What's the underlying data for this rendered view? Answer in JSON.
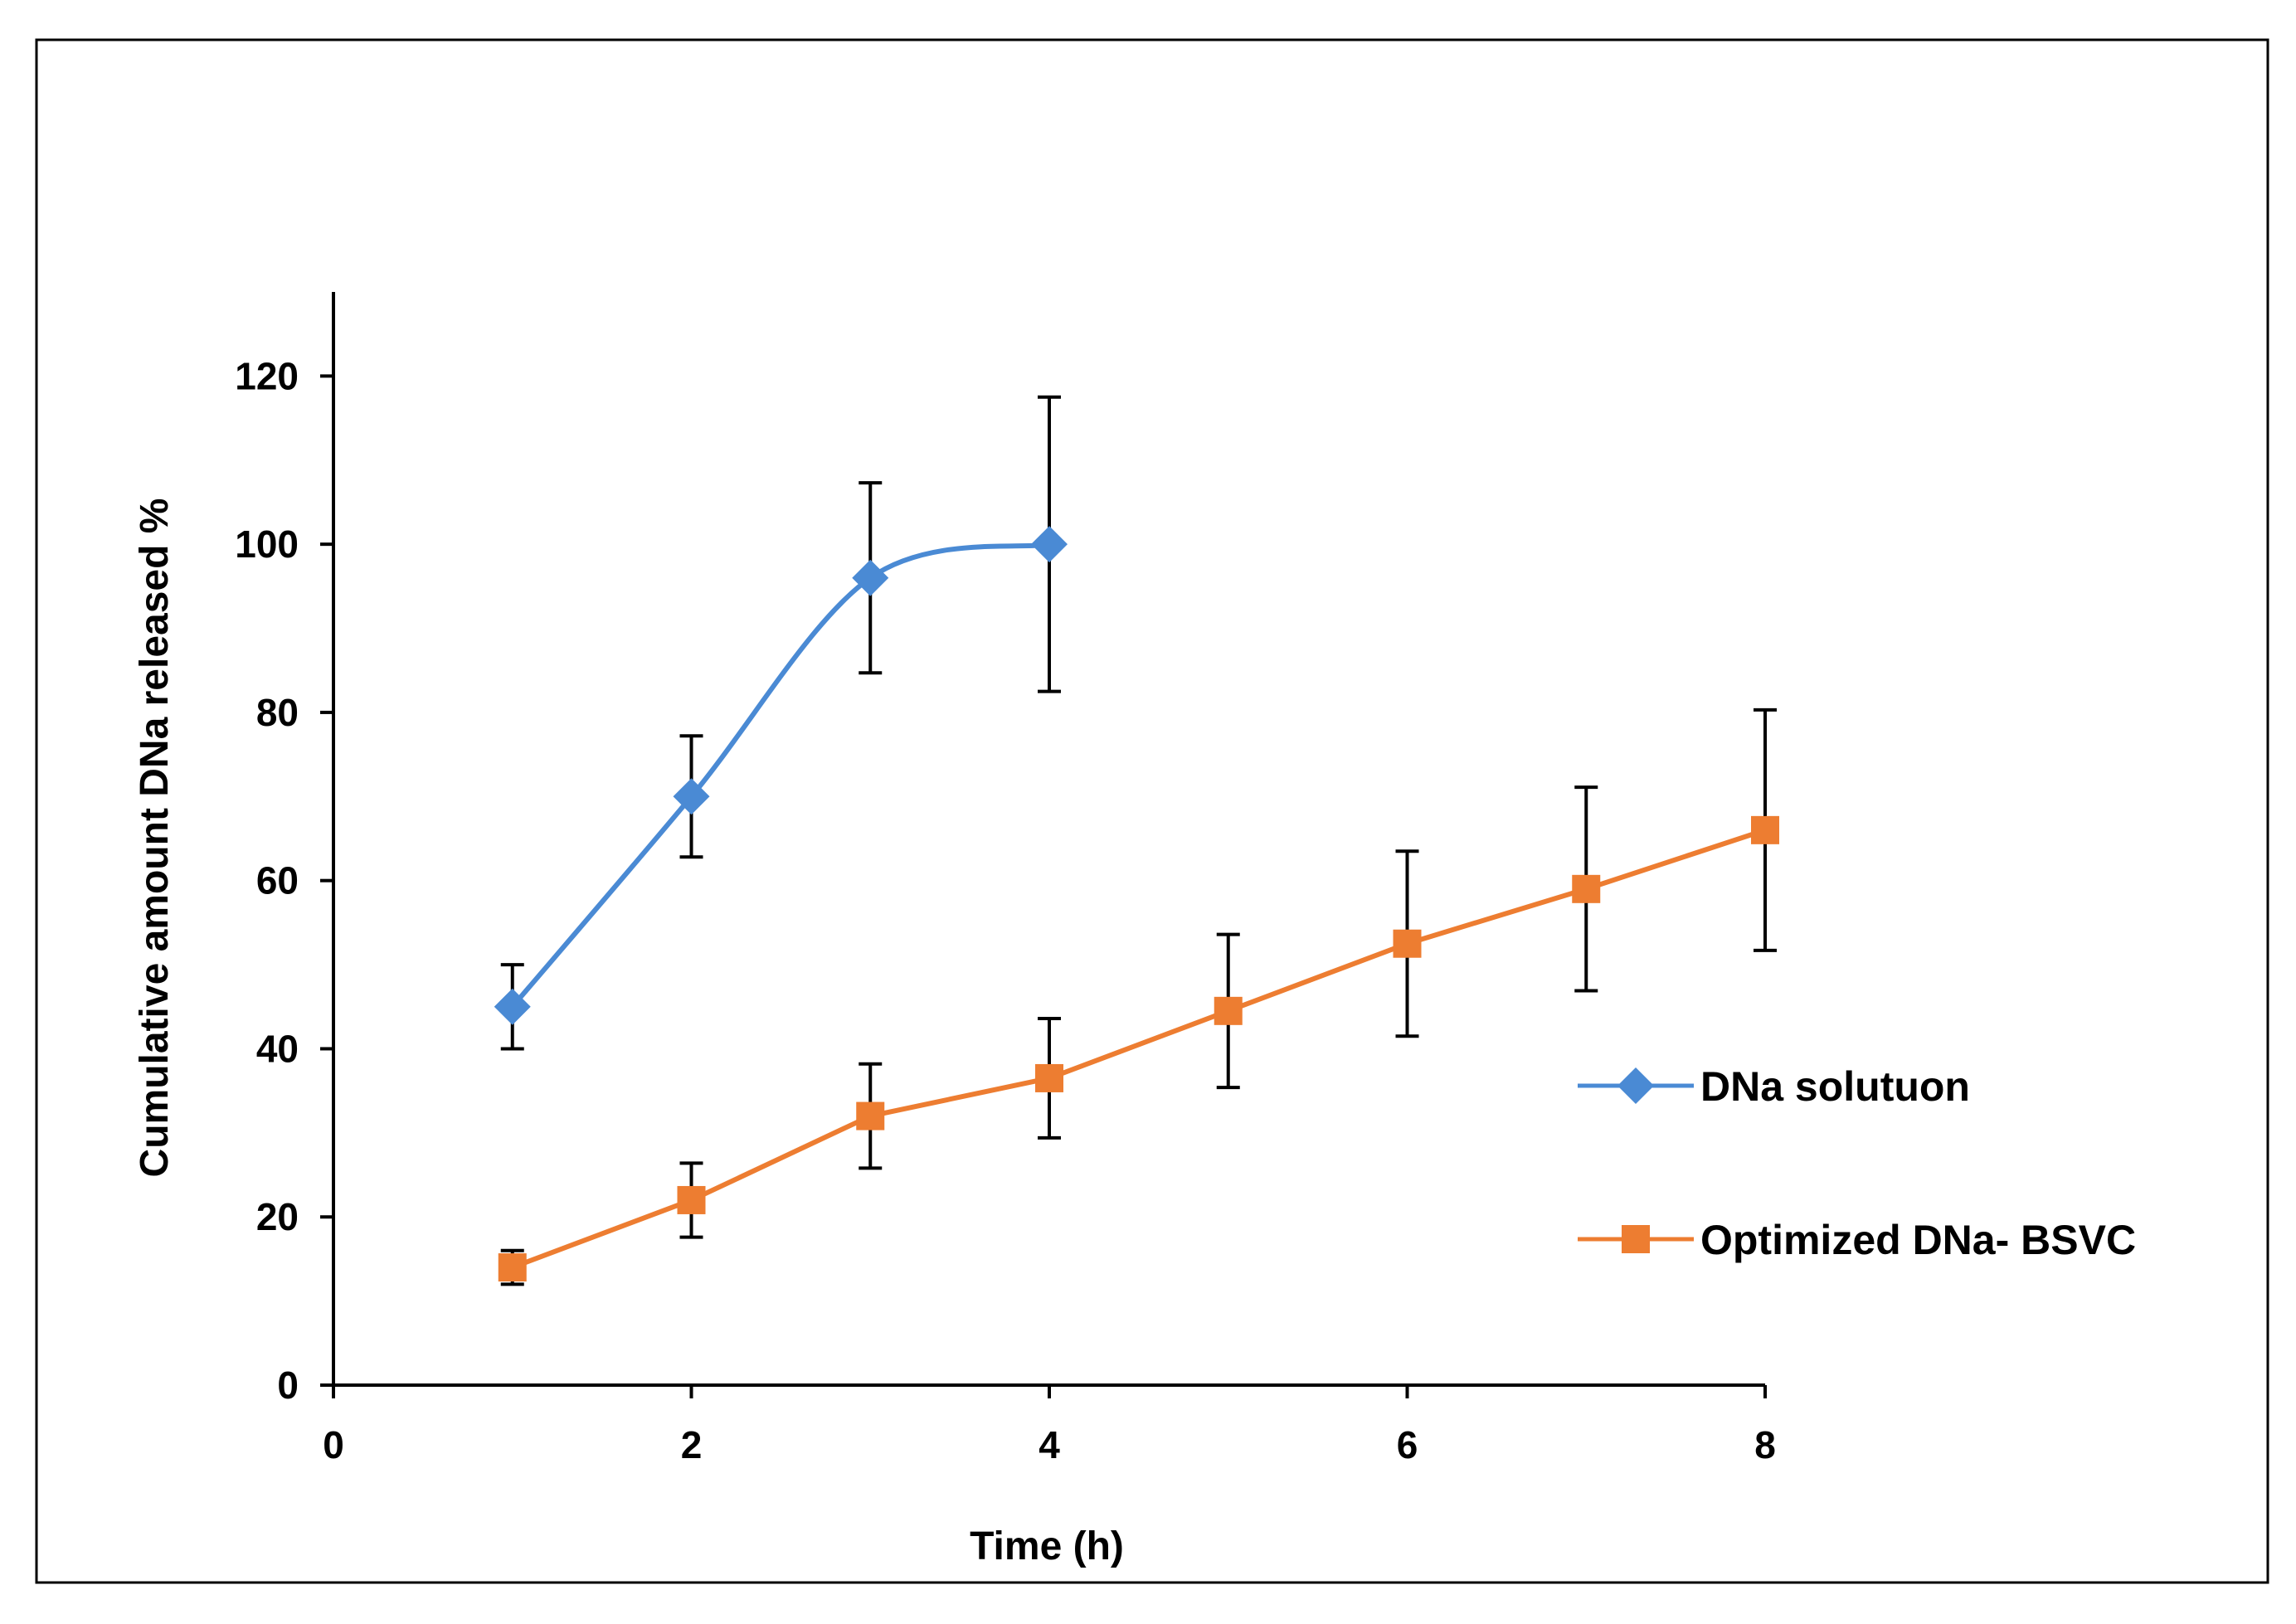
{
  "chart_data": {
    "type": "line",
    "title": "",
    "xlabel": "Time (h)",
    "ylabel": "Cumulative amount DNa released %",
    "xlim": [
      0,
      8
    ],
    "ylim": [
      0,
      130
    ],
    "x_ticks": [
      0,
      2,
      4,
      6,
      8
    ],
    "y_ticks": [
      0,
      20,
      40,
      60,
      80,
      100,
      120
    ],
    "grid": false,
    "legend_position": "right",
    "series": [
      {
        "name": "DNa solutuon",
        "color": "#4a8ad4",
        "marker": "diamond",
        "smooth": true,
        "x": [
          1,
          2,
          3,
          4
        ],
        "values": [
          45,
          70,
          96,
          100
        ],
        "error": [
          5,
          7.2,
          11.3,
          17.5
        ]
      },
      {
        "name": "Optimized DNa- BSVC",
        "color": "#ed7d31",
        "marker": "square",
        "smooth": false,
        "x": [
          1,
          2,
          3,
          4,
          5,
          6,
          7,
          8
        ],
        "values": [
          14,
          22,
          32,
          36.5,
          44.5,
          52.5,
          59,
          66
        ],
        "error": [
          2,
          4.4,
          6.2,
          7.1,
          9.1,
          11,
          12.1,
          14.3
        ]
      }
    ]
  }
}
